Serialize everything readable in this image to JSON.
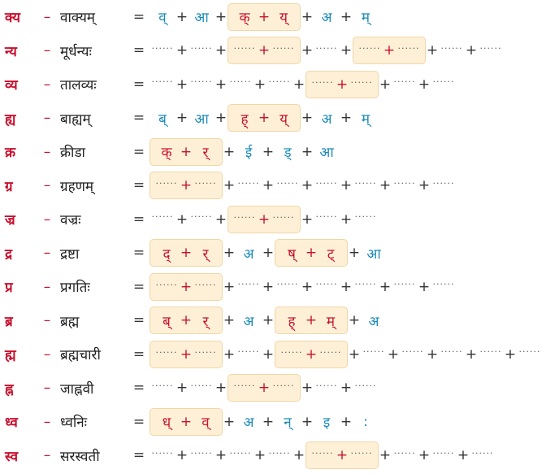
{
  "symbols": {
    "dash": "–",
    "equals": "=",
    "plus": "+"
  },
  "rows": [
    {
      "conjunct": "क्य",
      "word": "वाक्यम्",
      "terms": [
        "व्",
        "आ",
        [
          "क्",
          "य्"
        ],
        "अ",
        "म्"
      ]
    },
    {
      "conjunct": "न्य",
      "word": "मूर्धन्यः",
      "terms": [
        "......",
        "......",
        [
          "......",
          "......"
        ],
        "......",
        [
          "......",
          "......"
        ],
        "......",
        "......"
      ]
    },
    {
      "conjunct": "व्य",
      "word": "तालव्यः",
      "terms": [
        "......",
        "......",
        "......",
        "......",
        [
          "......",
          "......"
        ],
        "......",
        "......"
      ]
    },
    {
      "conjunct": "ह्य",
      "word": "बाह्यम्",
      "terms": [
        "ब्",
        "आ",
        [
          "ह्",
          "य्"
        ],
        "अ",
        "म्"
      ]
    },
    {
      "conjunct": "क्र",
      "word": "क्रीडा",
      "terms": [
        [
          "क्",
          "र्"
        ],
        "ई",
        "ड्",
        "आ"
      ]
    },
    {
      "conjunct": "ग्र",
      "word": "ग्रहणम्",
      "terms": [
        [
          "......",
          "......"
        ],
        "......",
        "......",
        "......",
        "......",
        "......",
        "......"
      ]
    },
    {
      "conjunct": "ज्र",
      "word": "वज्रः",
      "terms": [
        "......",
        "......",
        [
          "......",
          "......"
        ],
        "......",
        "......"
      ]
    },
    {
      "conjunct": "द्र",
      "word": "द्रष्टा",
      "terms": [
        [
          "द्",
          "र्"
        ],
        "अ",
        [
          "ष्",
          "ट्"
        ],
        "आ"
      ]
    },
    {
      "conjunct": "प्र",
      "word": "प्रगतिः",
      "terms": [
        [
          "......",
          "......"
        ],
        "......",
        "......",
        "......",
        "......",
        "......",
        "......"
      ]
    },
    {
      "conjunct": "ब्र",
      "word": "ब्रह्म",
      "terms": [
        [
          "ब्",
          "र्"
        ],
        "अ",
        [
          "ह्",
          "म्"
        ],
        "अ"
      ]
    },
    {
      "conjunct": "ह्म",
      "word": "ब्रह्मचारी",
      "terms": [
        [
          "......",
          "......"
        ],
        "......",
        [
          "......",
          "......"
        ],
        "......",
        "......",
        "......",
        "......",
        "......"
      ]
    },
    {
      "conjunct": "ह्न",
      "word": "जाह्नवी",
      "terms": [
        "......",
        "......",
        [
          "......",
          "......"
        ],
        "......",
        "......"
      ]
    },
    {
      "conjunct": "ध्व",
      "word": "ध्वनिः",
      "terms": [
        [
          "ध्",
          "व्"
        ],
        "अ",
        "न्",
        "इ",
        ":"
      ]
    },
    {
      "conjunct": "स्व",
      "word": "सरस्वती",
      "terms": [
        "......",
        "......",
        "......",
        "......",
        [
          "......",
          "......"
        ],
        "......",
        "......",
        "......"
      ]
    }
  ]
}
